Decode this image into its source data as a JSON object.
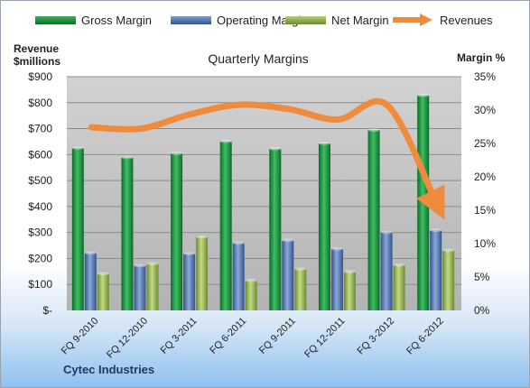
{
  "chart_data": {
    "type": "bar",
    "title": "Quarterly Margins",
    "ylabel": "Revenue $millions",
    "y2label": "Margin %",
    "ylim": [
      0,
      900
    ],
    "y2lim": [
      0,
      35
    ],
    "yticks": [
      "$-",
      "$100",
      "$200",
      "$300",
      "$400",
      "$500",
      "$600",
      "$700",
      "$800",
      "$900"
    ],
    "y2ticks": [
      "0%",
      "5%",
      "10%",
      "15%",
      "20%",
      "25%",
      "30%",
      "35%"
    ],
    "categories": [
      "FQ 9-2010",
      "FQ 12-2010",
      "FQ 3-2011",
      "FQ 6-2011",
      "FQ 9-2011",
      "FQ 12-2011",
      "FQ 3-2012",
      "FQ 6-2012"
    ],
    "series": [
      {
        "name": "Gross Margin",
        "kind": "bar",
        "axis": "right",
        "color": "#1f8a3c",
        "values": [
          24.3,
          22.9,
          23.5,
          25.3,
          24.2,
          25.0,
          27.0,
          32.2
        ]
      },
      {
        "name": "Operating Margin",
        "kind": "bar",
        "axis": "right",
        "color": "#4a6fb0",
        "values": [
          8.6,
          6.7,
          8.5,
          10.1,
          10.5,
          9.2,
          11.7,
          12.0
        ]
      },
      {
        "name": "Net Margin",
        "kind": "bar",
        "axis": "right",
        "color": "#8fae48",
        "values": [
          5.5,
          7.0,
          11.0,
          4.5,
          6.2,
          5.8,
          6.8,
          9.0
        ]
      },
      {
        "name": "Revenues",
        "kind": "line",
        "axis": "left",
        "color": "#ef8b3c",
        "values": [
          705,
          700,
          755,
          792,
          775,
          735,
          790,
          410
        ]
      }
    ],
    "legend": "top",
    "grid": true
  },
  "footer": {
    "company": "Cytec Industries"
  }
}
